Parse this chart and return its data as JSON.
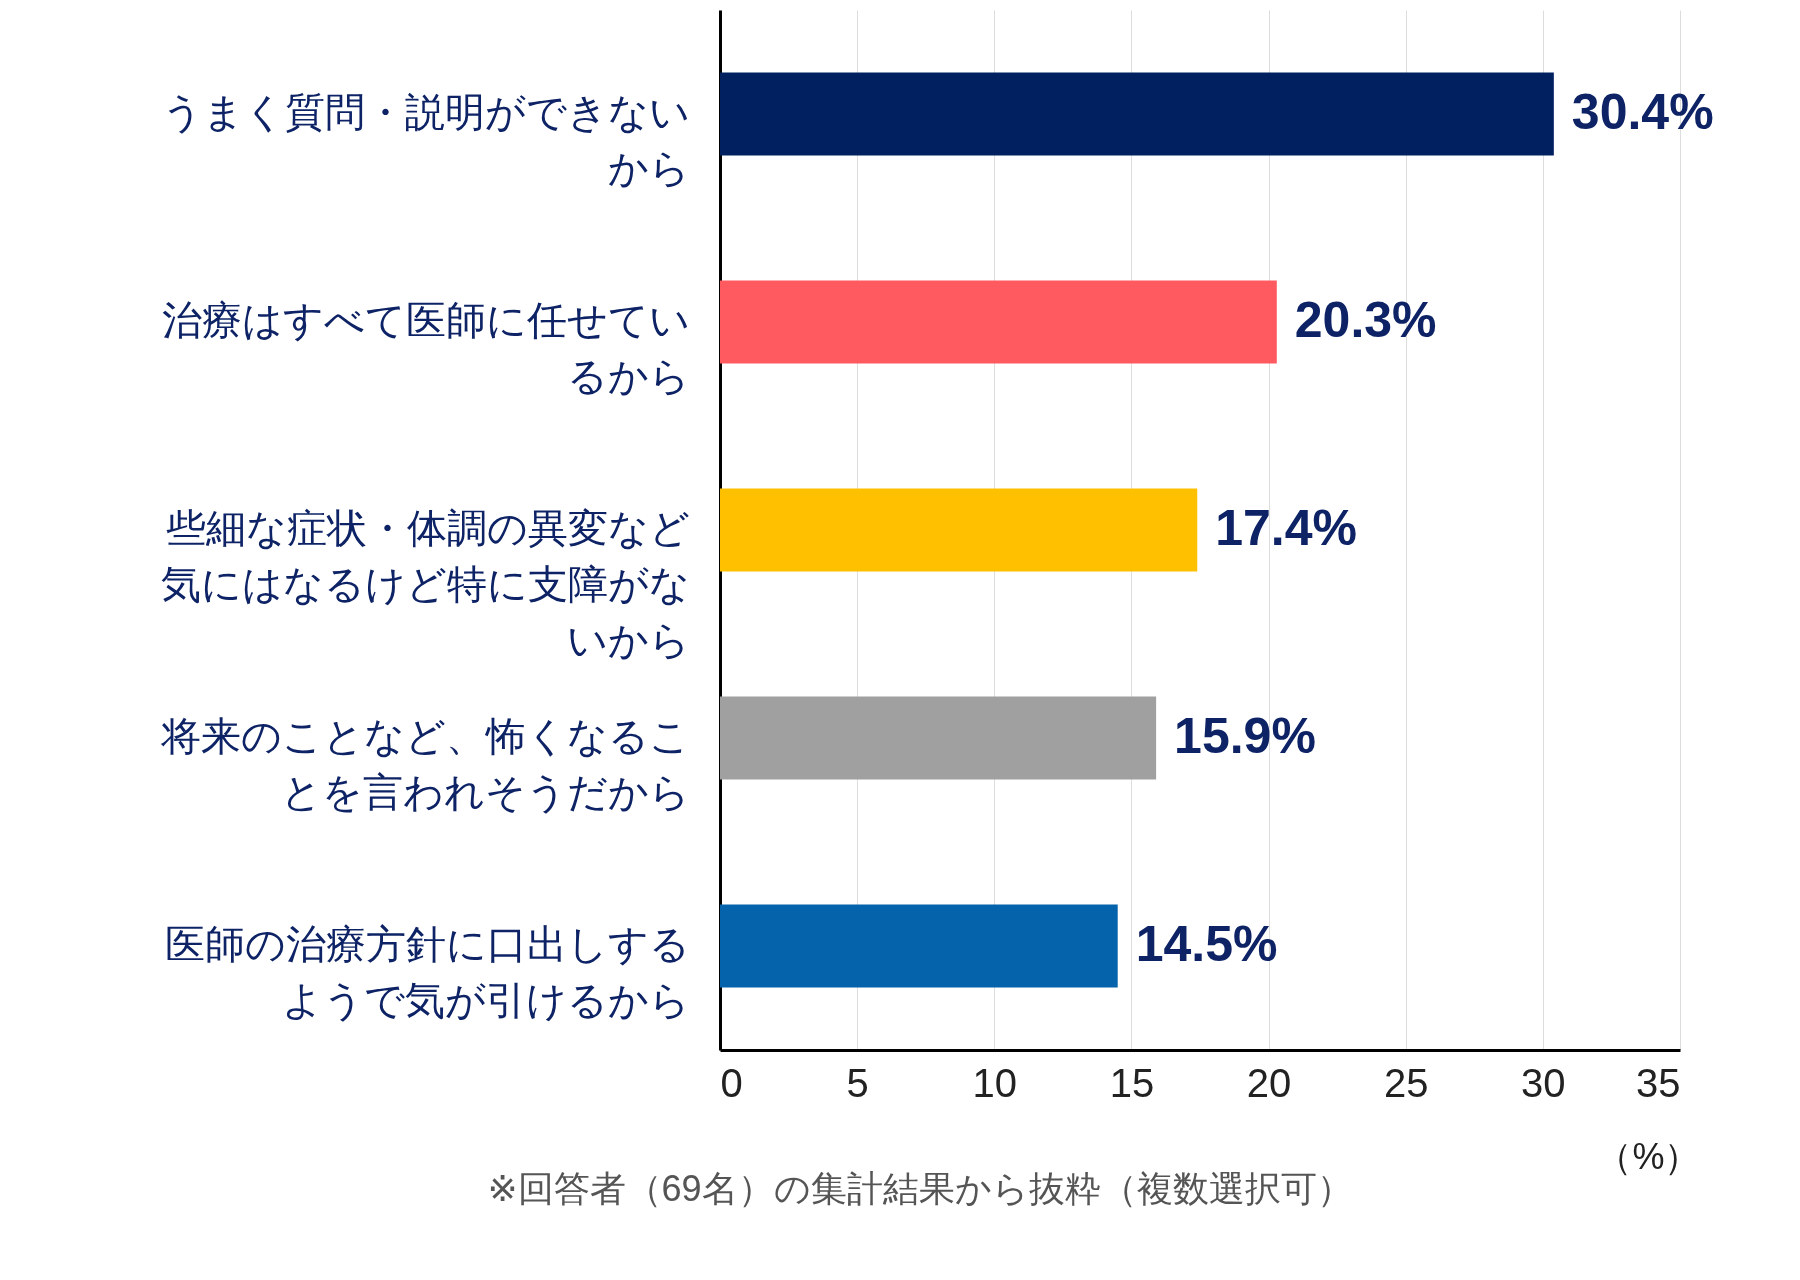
{
  "chart_data": {
    "type": "bar",
    "orientation": "horizontal",
    "categories": [
      "うまく質問・説明ができないから",
      "治療はすべて医師に任せているから",
      "些細な症状・体調の異変など気にはなるけど特に支障がないから",
      "将来のことなど、怖くなることを言われそうだから",
      "医師の治療方針に口出しするようで気が引けるから"
    ],
    "values": [
      30.4,
      20.3,
      17.4,
      15.9,
      14.5
    ],
    "colors": [
      "#002060",
      "#ff5a5f",
      "#ffc000",
      "#a0a0a0",
      "#0563ab"
    ],
    "value_labels": [
      "30.4%",
      "20.3%",
      "17.4%",
      "15.9%",
      "14.5%"
    ],
    "xlim": [
      0,
      35
    ],
    "xticks": [
      0,
      5,
      10,
      15,
      20,
      25,
      30,
      35
    ],
    "xlabel": "（%）",
    "grid": "x",
    "annotations": [
      "※回答者（69名）の集計結果から抜粋（複数選択可）"
    ]
  }
}
